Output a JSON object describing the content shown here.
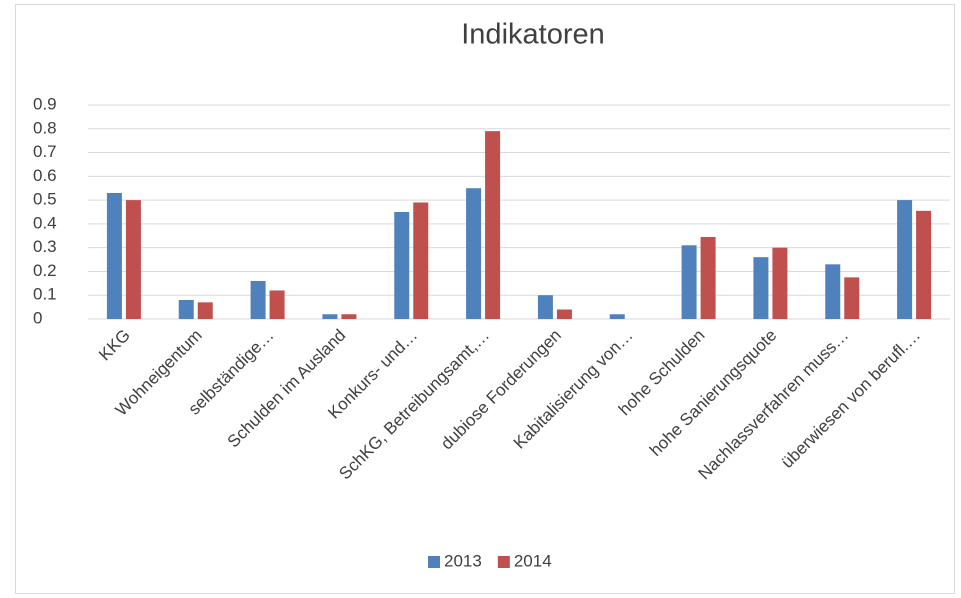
{
  "chart_data": {
    "type": "bar",
    "title": "Indikatoren",
    "categories": [
      "KKG",
      "Wohneigentum",
      "selbständige…",
      "Schulden im Ausland",
      "Konkurs- und…",
      "SchKG, Betreibungsamt,…",
      "dubiose Forderungen",
      "Kabitalisierung von…",
      "hohe Schulden",
      "hohe Sanierungsquote",
      "Nachlassverfahren muss…",
      "überwiesen von berufl.…"
    ],
    "series": [
      {
        "name": "2013",
        "color": "#4f81bd",
        "values": [
          0.53,
          0.08,
          0.16,
          0.02,
          0.45,
          0.55,
          0.1,
          0.02,
          0.31,
          0.26,
          0.23,
          0.5
        ]
      },
      {
        "name": "2014",
        "color": "#c0504d",
        "values": [
          0.5,
          0.07,
          0.12,
          0.02,
          0.49,
          0.79,
          0.04,
          0,
          0.345,
          0.3,
          0.175,
          0.455
        ]
      }
    ],
    "ylim": [
      0,
      0.9
    ],
    "yticks": [
      0,
      0.1,
      0.2,
      0.3,
      0.4,
      0.5,
      0.6,
      0.7,
      0.8,
      0.9
    ],
    "grid": true,
    "legend": "bottom"
  }
}
